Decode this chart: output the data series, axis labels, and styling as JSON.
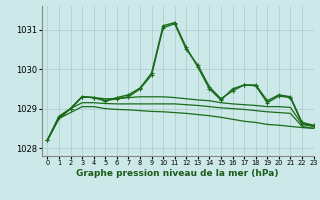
{
  "background_color": "#cce8e8",
  "grid_color": "#aacccc",
  "line_color": "#1a6b1a",
  "title": "Graphe pression niveau de la mer (hPa)",
  "xlim": [
    -0.5,
    23
  ],
  "ylim": [
    1027.8,
    1031.6
  ],
  "yticks": [
    1028,
    1029,
    1030,
    1031
  ],
  "xticks": [
    0,
    1,
    2,
    3,
    4,
    5,
    6,
    7,
    8,
    9,
    10,
    11,
    12,
    13,
    14,
    15,
    16,
    17,
    18,
    19,
    20,
    21,
    22,
    23
  ],
  "series": [
    {
      "y": [
        1028.2,
        1028.75,
        1028.9,
        1029.05,
        1029.05,
        1029.0,
        1028.98,
        1028.97,
        1028.95,
        1028.93,
        1028.92,
        1028.9,
        1028.88,
        1028.85,
        1028.82,
        1028.78,
        1028.73,
        1028.68,
        1028.65,
        1028.6,
        1028.58,
        1028.55,
        1028.52,
        1028.5
      ],
      "marker": null,
      "lw": 0.9
    },
    {
      "y": [
        1028.2,
        1028.75,
        1029.0,
        1029.15,
        1029.15,
        1029.13,
        1029.12,
        1029.12,
        1029.12,
        1029.12,
        1029.12,
        1029.12,
        1029.1,
        1029.08,
        1029.05,
        1029.02,
        1029.0,
        1028.98,
        1028.95,
        1028.92,
        1028.9,
        1028.88,
        1028.55,
        1028.5
      ],
      "marker": null,
      "lw": 0.9
    },
    {
      "y": [
        1028.2,
        1028.75,
        1029.0,
        1029.3,
        1029.28,
        1029.25,
        1029.25,
        1029.28,
        1029.3,
        1029.3,
        1029.3,
        1029.28,
        1029.25,
        1029.22,
        1029.2,
        1029.15,
        1029.12,
        1029.1,
        1029.08,
        1029.05,
        1029.05,
        1029.03,
        1028.6,
        1028.55
      ],
      "marker": null,
      "lw": 0.9
    },
    {
      "y": [
        1028.2,
        1028.8,
        1029.0,
        1029.3,
        1029.28,
        1029.2,
        1029.25,
        1029.3,
        1029.5,
        1029.85,
        1031.05,
        1031.15,
        1030.5,
        1030.1,
        1029.55,
        1029.25,
        1029.45,
        1029.6,
        1029.6,
        1029.2,
        1029.35,
        1029.3,
        1028.65,
        1028.58
      ],
      "marker": "+",
      "lw": 1.0
    },
    {
      "y": [
        1028.2,
        1028.8,
        1029.0,
        1029.3,
        1029.28,
        1029.2,
        1029.28,
        1029.35,
        1029.52,
        1029.9,
        1031.1,
        1031.18,
        1030.55,
        1030.05,
        1029.5,
        1029.22,
        1029.5,
        1029.6,
        1029.58,
        1029.15,
        1029.32,
        1029.28,
        1028.62,
        1028.56
      ],
      "marker": "+",
      "lw": 1.0
    }
  ]
}
